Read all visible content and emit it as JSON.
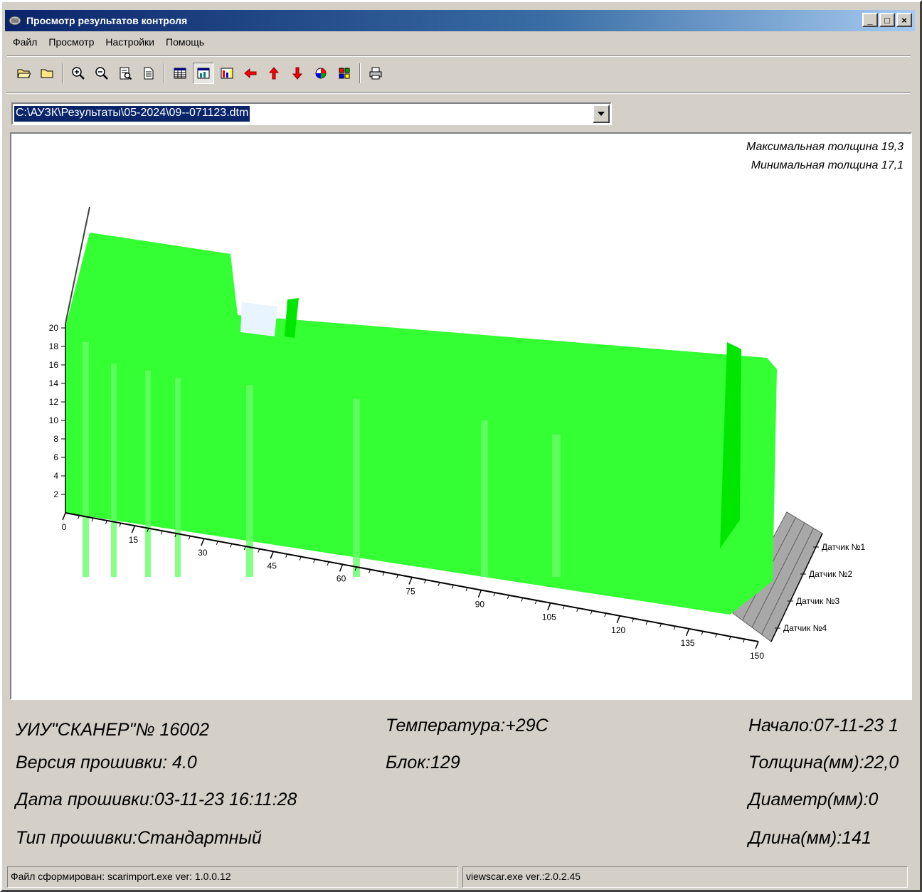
{
  "window": {
    "title": "Просмотр результатов контроля",
    "buttons": [
      "_",
      "□",
      "×"
    ]
  },
  "menu": [
    "Файл",
    "Просмотр",
    "Настройки",
    "Помощь"
  ],
  "toolbar": [
    {
      "name": "open-folder-icon",
      "pressed": false
    },
    {
      "name": "folder-icon",
      "pressed": false
    },
    {
      "sep": true
    },
    {
      "name": "zoom-in-icon",
      "pressed": false
    },
    {
      "name": "zoom-out-icon",
      "pressed": false
    },
    {
      "name": "page-zoom-icon",
      "pressed": false
    },
    {
      "name": "page-icon",
      "pressed": false
    },
    {
      "sep": true
    },
    {
      "name": "table-icon",
      "pressed": false
    },
    {
      "name": "graph-view-icon",
      "pressed": true
    },
    {
      "name": "bars-icon",
      "pressed": false
    },
    {
      "name": "arrow-left-icon",
      "pressed": false
    },
    {
      "name": "arrow-up-icon",
      "pressed": false
    },
    {
      "name": "arrow-down-icon",
      "pressed": false
    },
    {
      "name": "palette-icon",
      "pressed": false
    },
    {
      "name": "settings-icon",
      "pressed": false
    },
    {
      "sep": true
    },
    {
      "name": "print-icon",
      "pressed": false
    }
  ],
  "file_path": "C:\\АУЗК\\Результаты\\05-2024\\09--071123.dtm",
  "thickness": {
    "max_label": "Максимальная толщина 19,3",
    "min_label": "Минимальная толщина 17,1"
  },
  "chart_data": {
    "type": "3d-surface",
    "x_ticks": [
      "0",
      "15",
      "30",
      "45",
      "60",
      "75",
      "90",
      "105",
      "120",
      "135",
      "150"
    ],
    "y_ticks": [
      "2",
      "4",
      "6",
      "8",
      "10",
      "12",
      "14",
      "16",
      "18",
      "20"
    ],
    "z_labels": [
      "Датчик №1",
      "Датчик №2",
      "Датчик №3",
      "Датчик №4"
    ],
    "ylim": [
      0,
      20
    ],
    "xlim": [
      0,
      150
    ],
    "colors": {
      "surface": "#33ff33",
      "surface_light": "#66ff66",
      "surface_dark": "#00e600",
      "floor": "#a8a8a8",
      "gap": "#e8f4ff"
    }
  },
  "info": {
    "device": "УИУ\"СКАНЕР\"№ 16002",
    "firmware_version": "Версия прошивки: 4.0",
    "firmware_date": "Дата прошивки:03-11-23 16:11:28",
    "firmware_type": "Тип прошивки:Стандартный",
    "temperature": "Температура:+29С",
    "block": "Блок:129",
    "start": "Начало:07-11-23 1",
    "thickness": "Толщина(мм):22,0",
    "diameter": "Диаметр(мм):0",
    "length": "Длина(мм):141"
  },
  "status": {
    "left": "Файл сформирован: scarimport.exe ver: 1.0.0.12",
    "right": "viewscar.exe ver.:2.0.2.45"
  }
}
